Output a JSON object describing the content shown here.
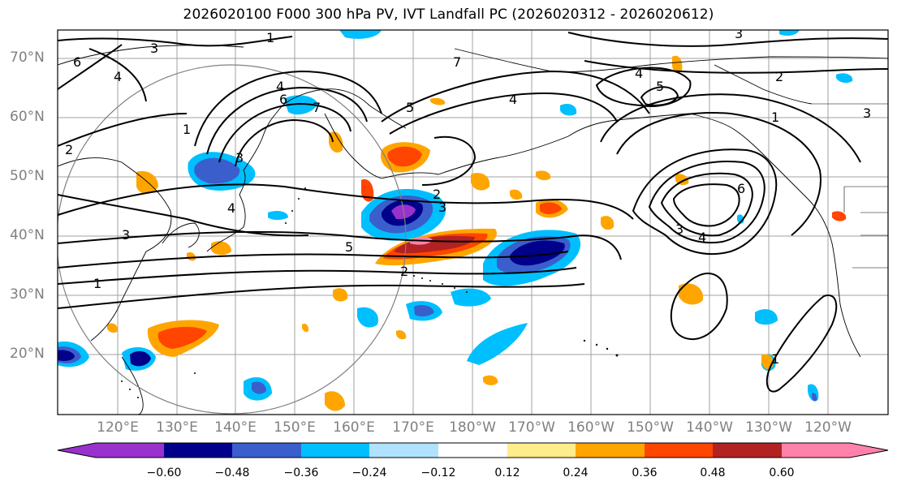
{
  "title": "2026020100 F000 300 hPa PV, IVT Landfall PC (2026020312 - 2026020612)",
  "latitude_labels": [
    "70°N",
    "60°N",
    "50°N",
    "40°N",
    "30°N",
    "20°N"
  ],
  "longitude_labels": [
    "120°E",
    "130°E",
    "140°E",
    "150°E",
    "160°E",
    "170°E",
    "180°W",
    "170°W",
    "160°W",
    "150°W",
    "140°W",
    "130°W",
    "120°W"
  ],
  "colorbar": {
    "ticks": [
      "−0.60",
      "−0.48",
      "−0.36",
      "−0.24",
      "−0.12",
      "0.12",
      "0.24",
      "0.36",
      "0.48",
      "0.60"
    ],
    "colors": [
      "#9932cc",
      "#00008b",
      "#3a5fcd",
      "#00bfff",
      "#b0e2ff",
      "#ffffff",
      "#ffec8b",
      "#ffa500",
      "#ff4500",
      "#b22222",
      "#ff82ab"
    ]
  },
  "pv_contour_labels": [
    "1",
    "2",
    "3",
    "4",
    "5",
    "6",
    "7"
  ],
  "map_legend_values": {
    "contour_variable": "300 hPa PV",
    "shading_variable": "IVT Landfall PC"
  }
}
